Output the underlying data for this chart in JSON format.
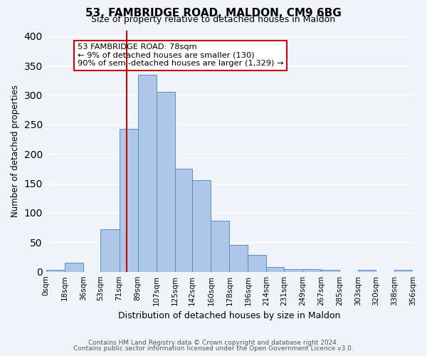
{
  "title": "53, FAMBRIDGE ROAD, MALDON, CM9 6BG",
  "subtitle": "Size of property relative to detached houses in Maldon",
  "xlabel": "Distribution of detached houses by size in Maldon",
  "ylabel": "Number of detached properties",
  "bin_edges": [
    0,
    18,
    36,
    53,
    71,
    89,
    107,
    125,
    142,
    160,
    178,
    196,
    214,
    231,
    249,
    267,
    285,
    303,
    320,
    338,
    356
  ],
  "bin_labels": [
    "0sqm",
    "18sqm",
    "36sqm",
    "53sqm",
    "71sqm",
    "89sqm",
    "107sqm",
    "125sqm",
    "142sqm",
    "160sqm",
    "178sqm",
    "196sqm",
    "214sqm",
    "231sqm",
    "249sqm",
    "267sqm",
    "285sqm",
    "303sqm",
    "320sqm",
    "338sqm",
    "356sqm"
  ],
  "counts": [
    3,
    15,
    0,
    72,
    242,
    335,
    305,
    175,
    155,
    87,
    46,
    29,
    8,
    5,
    5,
    3,
    0,
    3,
    0,
    3
  ],
  "bar_color": "#aec6e8",
  "bar_edge_color": "#5a8fc0",
  "vline_x": 78,
  "vline_color": "#cc0000",
  "annotation_box_text": "53 FAMBRIDGE ROAD: 78sqm\n← 9% of detached houses are smaller (130)\n90% of semi-detached houses are larger (1,329) →",
  "ylim": [
    0,
    410
  ],
  "yticks": [
    0,
    50,
    100,
    150,
    200,
    250,
    300,
    350,
    400
  ],
  "background_color": "#f0f4fa",
  "grid_color": "#ffffff",
  "footnote1": "Contains HM Land Registry data © Crown copyright and database right 2024.",
  "footnote2": "Contains public sector information licensed under the Open Government Licence v3.0."
}
